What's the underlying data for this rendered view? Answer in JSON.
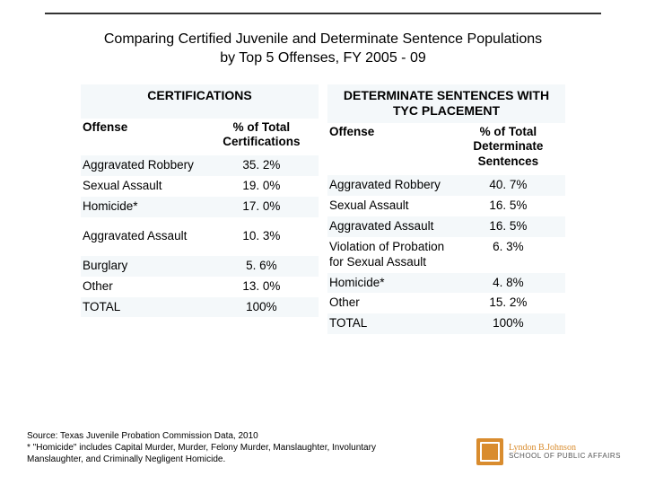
{
  "title_line1": "Comparing Certified Juvenile and Determinate Sentence Populations",
  "title_line2": "by Top 5 Offenses, FY 2005 - 09",
  "left": {
    "group": "CERTIFICATIONS",
    "col1": "Offense",
    "col2": "% of Total Certifications",
    "rows": [
      {
        "offense": "Aggravated Robbery",
        "pct": "35. 2%"
      },
      {
        "offense": "Sexual Assault",
        "pct": "19. 0%"
      },
      {
        "offense": "Homicide*",
        "pct": "17. 0%"
      },
      {
        "offense": "Aggravated Assault",
        "pct": "10. 3%"
      },
      {
        "offense": "Burglary",
        "pct": "5. 6%"
      },
      {
        "offense": "Other",
        "pct": "13. 0%"
      },
      {
        "offense": "TOTAL",
        "pct": "100%"
      }
    ]
  },
  "right": {
    "group": "DETERMINATE SENTENCES WITH TYC PLACEMENT",
    "col1": "Offense",
    "col2": "% of Total Determinate Sentences",
    "rows": [
      {
        "offense": "Aggravated Robbery",
        "pct": "40. 7%"
      },
      {
        "offense": "Sexual Assault",
        "pct": "16. 5%"
      },
      {
        "offense": "Aggravated Assault",
        "pct": "16. 5%"
      },
      {
        "offense": "Violation of Probation for Sexual Assault",
        "pct": "6. 3%"
      },
      {
        "offense": "Homicide*",
        "pct": "4. 8%"
      },
      {
        "offense": "Other",
        "pct": "15. 2%"
      },
      {
        "offense": "TOTAL",
        "pct": "100%"
      }
    ]
  },
  "footer_line1": "Source: Texas Juvenile Probation Commission Data, 2010",
  "footer_line2": "* \"Homicide\" includes Capital Murder, Murder, Felony Murder, Manslaughter, Involuntary",
  "footer_line3": "Manslaughter, and Criminally Negligent Homicide.",
  "logo_l1": "Lyndon B.Johnson",
  "logo_l2": "SCHOOL OF PUBLIC AFFAIRS"
}
